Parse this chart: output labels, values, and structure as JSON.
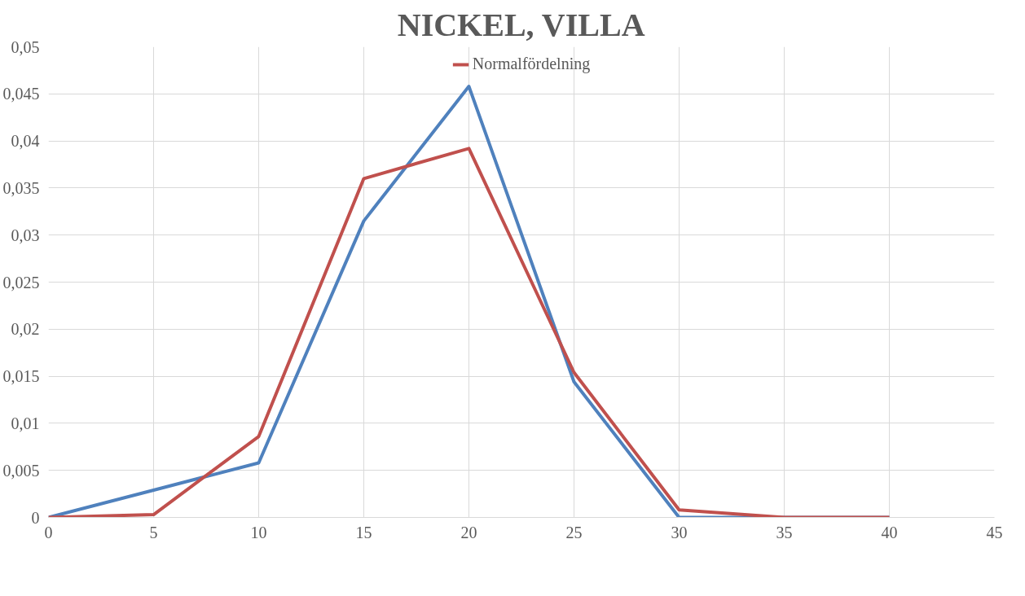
{
  "chart_data": {
    "type": "line",
    "title": "NICKEL, VILLA",
    "x": [
      0,
      5,
      10,
      15,
      20,
      25,
      30,
      35,
      40
    ],
    "series": [
      {
        "color": "#4f81bd",
        "values": [
          0,
          0.0029,
          0.0058,
          0.0315,
          0.0458,
          0.0144,
          0,
          0,
          0
        ]
      },
      {
        "name": "Normalfördelning",
        "color": "#c0504d",
        "values": [
          0,
          0.0003,
          0.0086,
          0.036,
          0.0392,
          0.0154,
          0.0008,
          0,
          0
        ]
      }
    ],
    "xlim": [
      0,
      45
    ],
    "xticks": [
      0,
      5,
      10,
      15,
      20,
      25,
      30,
      35,
      40,
      45
    ],
    "ylim": [
      0,
      0.05
    ],
    "yticks": [
      {
        "value": 0,
        "label": "0"
      },
      {
        "value": 0.005,
        "label": "0,005"
      },
      {
        "value": 0.01,
        "label": "0,01"
      },
      {
        "value": 0.015,
        "label": "0,015"
      },
      {
        "value": 0.02,
        "label": "0,02"
      },
      {
        "value": 0.025,
        "label": "0,025"
      },
      {
        "value": 0.03,
        "label": "0,03"
      },
      {
        "value": 0.035,
        "label": "0,035"
      },
      {
        "value": 0.04,
        "label": "0,04"
      },
      {
        "value": 0.045,
        "label": "0,045"
      },
      {
        "value": 0.05,
        "label": "0,05"
      }
    ],
    "grid": true,
    "legend": "top",
    "marker": "none",
    "line_style": "solid"
  }
}
